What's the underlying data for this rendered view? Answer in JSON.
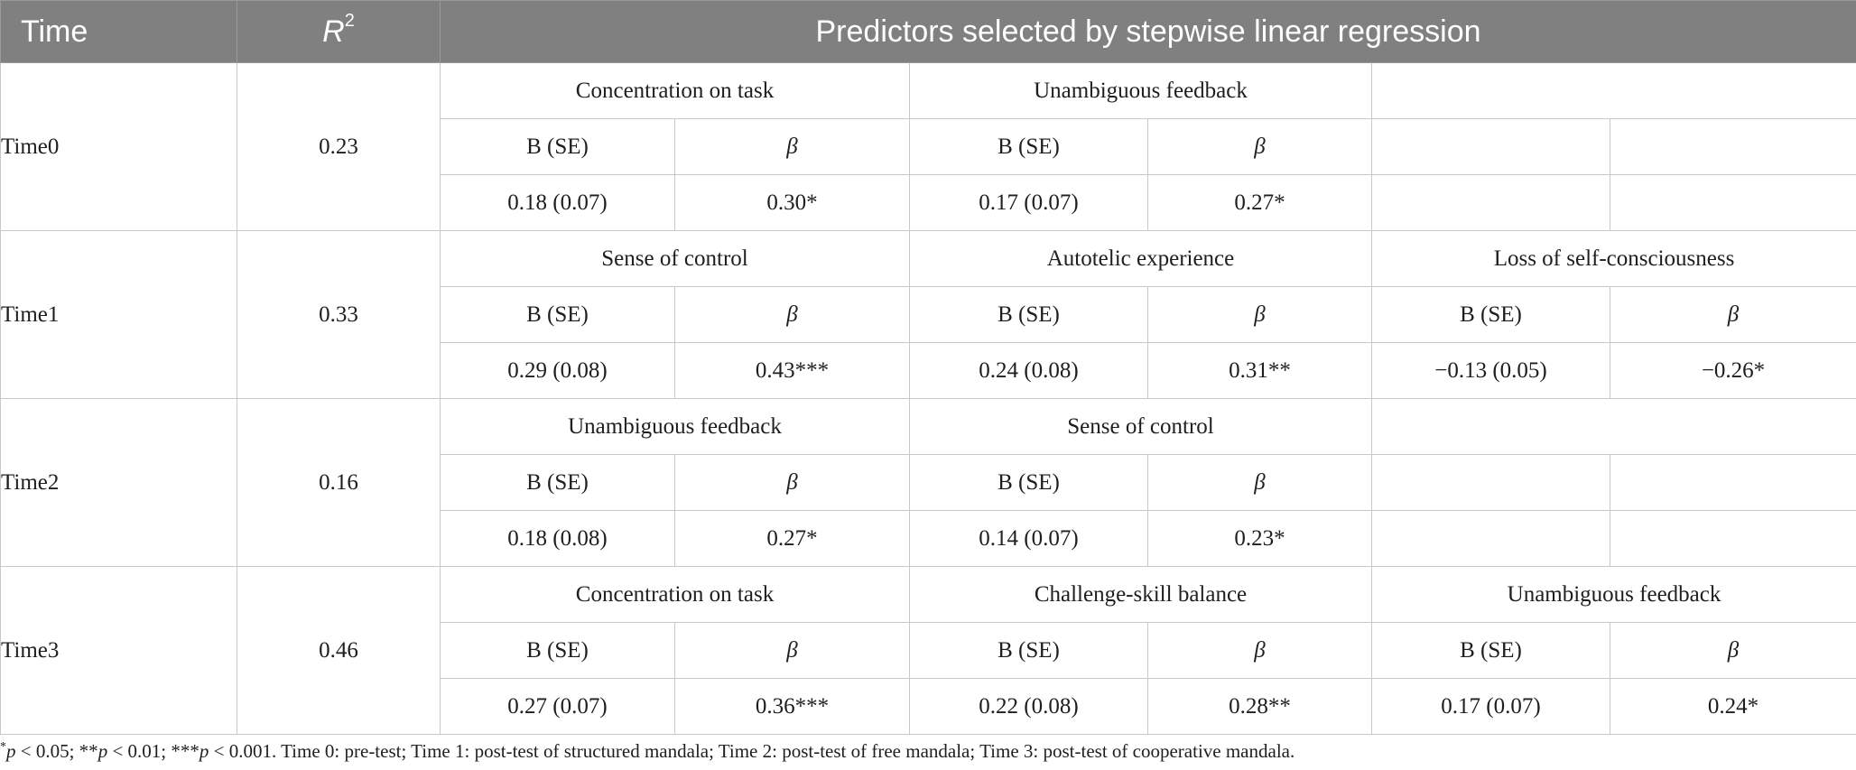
{
  "header": {
    "time": "Time",
    "r2_letter": "R",
    "r2_exp": "2",
    "predictors": "Predictors selected by stepwise linear regression"
  },
  "col_labels": {
    "b": "B (SE)",
    "beta": "β"
  },
  "rows": [
    {
      "time": "Time0",
      "r2": "0.23",
      "predictors": [
        {
          "name": "Concentration on task",
          "b": "0.18 (0.07)",
          "beta": "0.30*"
        },
        {
          "name": "Unambiguous feedback",
          "b": "0.17 (0.07)",
          "beta": "0.27*"
        }
      ]
    },
    {
      "time": "Time1",
      "r2": "0.33",
      "predictors": [
        {
          "name": "Sense of control",
          "b": "0.29 (0.08)",
          "beta": "0.43***"
        },
        {
          "name": "Autotelic experience",
          "b": "0.24 (0.08)",
          "beta": "0.31**"
        },
        {
          "name": "Loss of self-consciousness",
          "b": "−0.13 (0.05)",
          "beta": "−0.26*"
        }
      ]
    },
    {
      "time": "Time2",
      "r2": "0.16",
      "predictors": [
        {
          "name": "Unambiguous feedback",
          "b": "0.18 (0.08)",
          "beta": "0.27*"
        },
        {
          "name": "Sense of control",
          "b": "0.14 (0.07)",
          "beta": "0.23*"
        }
      ]
    },
    {
      "time": "Time3",
      "r2": "0.46",
      "predictors": [
        {
          "name": "Concentration on task",
          "b": "0.27 (0.07)",
          "beta": "0.36***"
        },
        {
          "name": "Challenge-skill balance",
          "b": "0.22 (0.08)",
          "beta": "0.28**"
        },
        {
          "name": "Unambiguous feedback",
          "b": "0.17 (0.07)",
          "beta": "0.24*"
        }
      ]
    }
  ],
  "footnote": {
    "s1": "*",
    "p": "p",
    "s2": " < 0.05; **",
    "s3": " < 0.01; ***",
    "s4": " < 0.001. Time 0: pre-test; Time 1: post-test of structured mandala; Time 2: post-test of free mandala; Time 3: post-test of cooperative mandala."
  }
}
